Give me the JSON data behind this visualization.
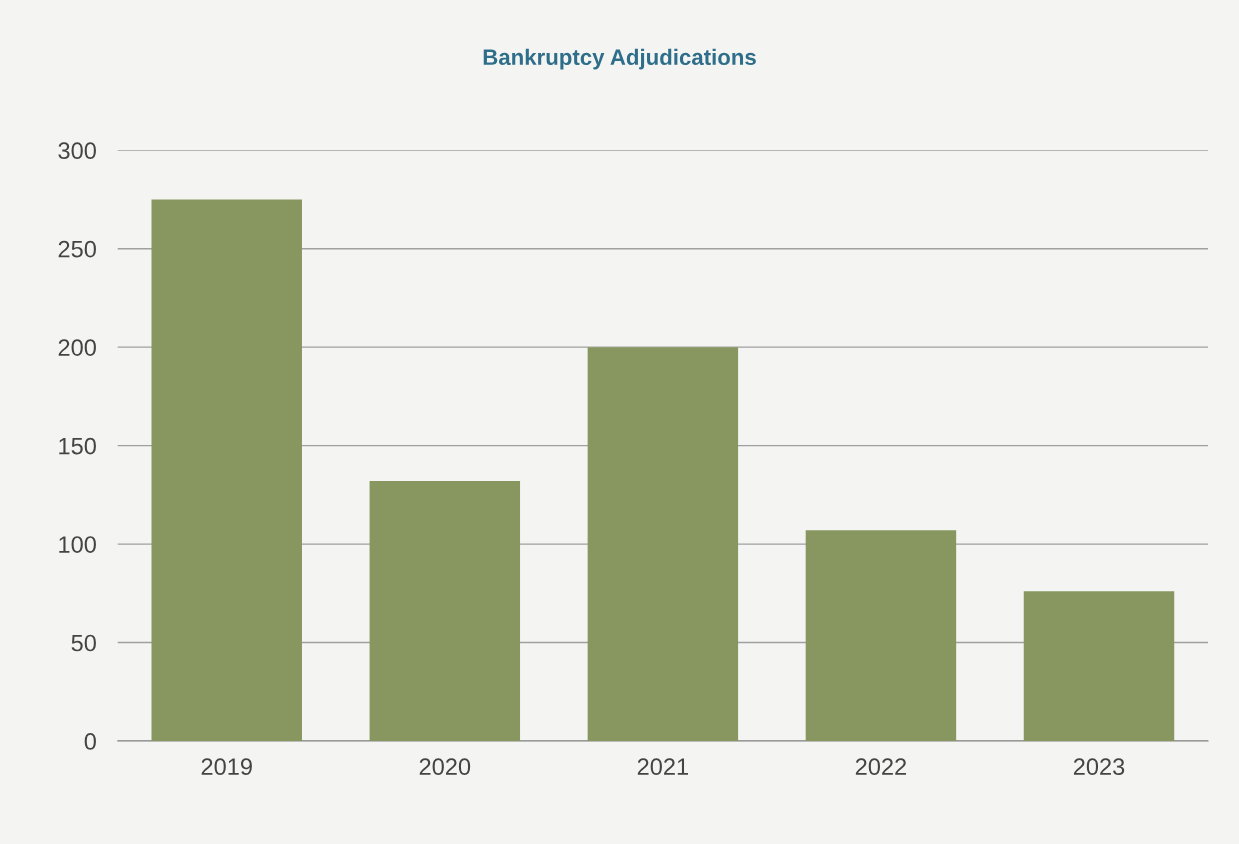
{
  "chart_data": {
    "type": "bar",
    "title": "Bankruptcy Adjudications",
    "categories": [
      "2019",
      "2020",
      "2021",
      "2022",
      "2023"
    ],
    "values": [
      275,
      132,
      200,
      107,
      76
    ],
    "color": "#87975f",
    "ylim": [
      0,
      300
    ],
    "yticks": [
      0,
      50,
      100,
      150,
      200,
      250,
      300
    ],
    "grid": "y"
  }
}
